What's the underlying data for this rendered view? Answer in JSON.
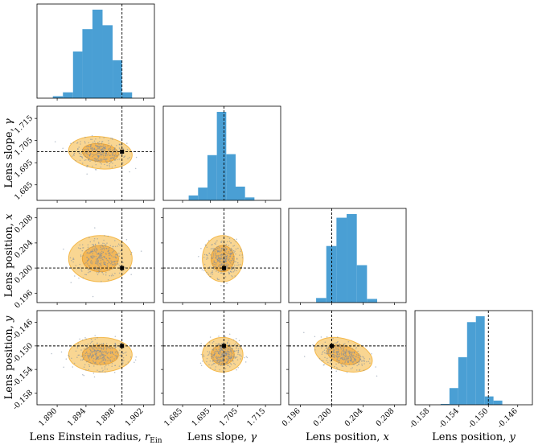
{
  "chart_data": {
    "type": "corner",
    "parameters": [
      {
        "id": "theta_E",
        "label_prefix": "Lens Einstein radius, ",
        "label_symbol": "r",
        "label_sub": "Ein",
        "range": [
          1.8872,
          1.9035
        ],
        "ticks": [
          1.89,
          1.894,
          1.898,
          1.902
        ],
        "tick_labels": [
          "1.890",
          "1.894",
          "1.898",
          "1.902"
        ],
        "truth": 1.899,
        "mean": 1.896,
        "std": 0.0018,
        "hist_bin_edges": [
          1.8894,
          1.8908,
          1.8922,
          1.8935,
          1.8949,
          1.8963,
          1.8977,
          1.899,
          1.9004,
          1.9018
        ],
        "hist_counts": [
          2,
          6,
          48,
          71,
          91,
          75,
          39,
          6,
          0
        ]
      },
      {
        "id": "gamma",
        "label_prefix": "Lens slope, ",
        "label_symbol": "γ",
        "label_sub": "",
        "range": [
          1.678,
          1.7205
        ],
        "ticks": [
          1.685,
          1.695,
          1.705,
          1.715
        ],
        "tick_labels": [
          "1.685",
          "1.695",
          "1.705",
          "1.715"
        ],
        "truth": 1.7,
        "mean": 1.6995,
        "std": 0.003,
        "hist_bin_edges": [
          1.6872,
          1.6906,
          1.694,
          1.6974,
          1.7008,
          1.7042,
          1.7076,
          1.711
        ],
        "hist_counts": [
          5,
          13,
          46,
          90,
          47,
          14,
          3
        ]
      },
      {
        "id": "x",
        "label_prefix": "Lens position, ",
        "label_symbol": "x",
        "label_sub": "",
        "range": [
          0.1945,
          0.2095
        ],
        "ticks": [
          0.196,
          0.2,
          0.204,
          0.208
        ],
        "tick_labels": [
          "0.196",
          "0.200",
          "0.204",
          "0.208"
        ],
        "truth": 0.2,
        "mean": 0.2015,
        "std": 0.0015,
        "hist_bin_edges": [
          0.198,
          0.1993,
          0.2006,
          0.2019,
          0.2032,
          0.2045,
          0.2058
        ],
        "hist_counts": [
          5,
          62,
          93,
          97,
          41,
          4
        ]
      },
      {
        "id": "y",
        "label_prefix": "Lens position, ",
        "label_symbol": "y",
        "label_sub": "",
        "range": [
          -0.16,
          -0.144
        ],
        "ticks": [
          -0.158,
          -0.154,
          -0.15,
          -0.146
        ],
        "tick_labels": [
          "-0.158",
          "-0.154",
          "-0.150",
          "-0.146"
        ],
        "truth": -0.15,
        "mean": -0.1515,
        "std": 0.0012,
        "hist_bin_edges": [
          -0.1565,
          -0.1553,
          -0.1541,
          -0.1529,
          -0.1517,
          -0.1505,
          -0.1493,
          -0.1481
        ],
        "hist_counts": [
          1,
          20,
          57,
          99,
          106,
          10,
          5
        ]
      }
    ],
    "correlations": {
      "1,0": -0.15,
      "2,0": 0.0,
      "2,1": 0.0,
      "3,0": 0.0,
      "3,1": 0.0,
      "3,2": -0.35
    },
    "samples_per_panel": 320,
    "colors": {
      "histogram": "#4a9fd4",
      "sigma2_fill": "#f8cf7f",
      "sigma1_fill": "#f2b24d",
      "samples": "#7a8a9e",
      "truth": "#000000"
    }
  }
}
